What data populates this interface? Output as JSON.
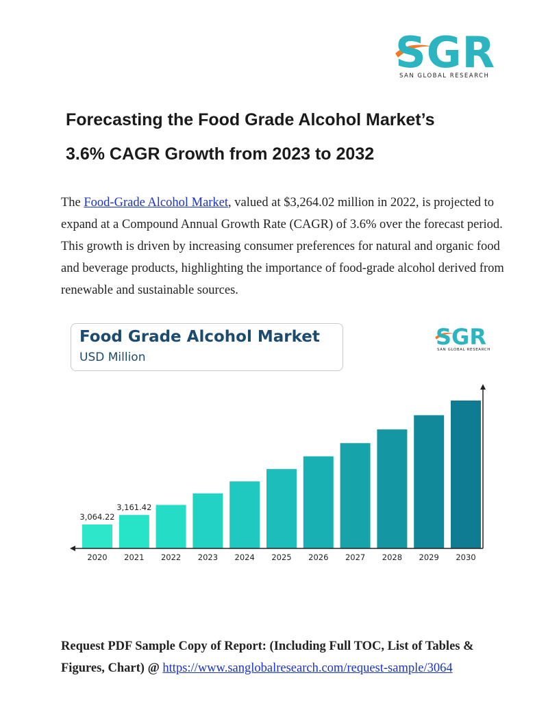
{
  "logo": {
    "letters": "SGR",
    "tagline": "SAN GLOBAL RESEARCH",
    "colors": {
      "letters": "#2cb5c0",
      "swoosh": "#f07a2a"
    }
  },
  "title": {
    "line1": "Forecasting the Food Grade Alcohol Market’s",
    "line2": "3.6% CAGR Growth from 2023 to 2032"
  },
  "intro": {
    "pre_link": "The ",
    "link_text": "Food-Grade Alcohol Market",
    "post_link": ", valued at $3,264.02 million in 2022, is projected to expand at a Compound Annual Growth Rate (CAGR) of 3.6% over the forecast period. This growth is driven by increasing consumer preferences for natural and organic food and beverage products, highlighting the importance of food-grade alcohol derived from renewable and sustainable sources."
  },
  "chart_card": {
    "title": "Food Grade Alcohol Market",
    "subtitle": "USD Million"
  },
  "chart_data": {
    "type": "bar",
    "title": "Food Grade Alcohol Market",
    "ylabel": "USD Million",
    "categories": [
      "2020",
      "2021",
      "2022",
      "2023",
      "2024",
      "2025",
      "2026",
      "2027",
      "2028",
      "2029",
      "2030"
    ],
    "values": [
      3064.22,
      3161.42,
      3264.02,
      3382,
      3504,
      3630,
      3760,
      3895,
      4035,
      4180,
      4330
    ],
    "data_labels": [
      "3,064.22",
      "3,161.42",
      null,
      null,
      null,
      null,
      null,
      null,
      null,
      null,
      null
    ],
    "colors": [
      "#2ee6c9",
      "#27e3c8",
      "#25dcc6",
      "#22d3c4",
      "#1fc9c0",
      "#1cbdbb",
      "#19b0b3",
      "#16a3aa",
      "#1496a3",
      "#11899b",
      "#0f7c93"
    ]
  },
  "footer": {
    "bold_text": "Request PDF Sample Copy of Report: (Including Full TOC, List of Tables & Figures, Chart) @ ",
    "link_text": "https://www.sanglobalresearch.com/request-sample/3064"
  }
}
